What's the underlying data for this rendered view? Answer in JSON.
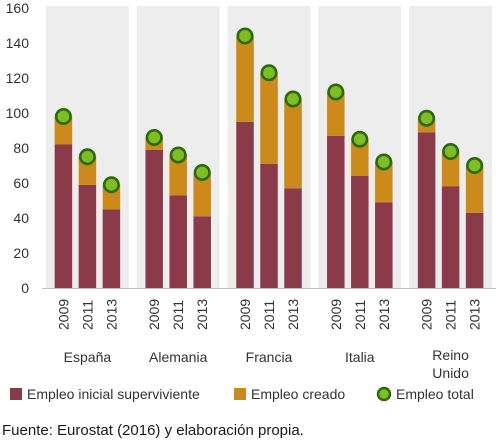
{
  "chart_data": {
    "type": "bar",
    "stacked": true,
    "ylim": [
      0,
      160
    ],
    "yticks": [
      0,
      20,
      40,
      60,
      80,
      100,
      120,
      140,
      160
    ],
    "grid": false,
    "legend_position": "bottom",
    "groups": [
      {
        "label": "España",
        "years": [
          "2009",
          "2011",
          "2013"
        ],
        "surviving": [
          82,
          59,
          45
        ],
        "created": [
          16,
          16,
          14
        ],
        "total": [
          98,
          75,
          59
        ]
      },
      {
        "label": "Alemania",
        "years": [
          "2009",
          "2011",
          "2013"
        ],
        "surviving": [
          79,
          53,
          41
        ],
        "created": [
          7,
          23,
          25
        ],
        "total": [
          86,
          76,
          66
        ]
      },
      {
        "label": "Francia",
        "years": [
          "2009",
          "2011",
          "2013"
        ],
        "surviving": [
          95,
          71,
          57
        ],
        "created": [
          49,
          52,
          51
        ],
        "total": [
          144,
          123,
          108
        ]
      },
      {
        "label": "Italia",
        "years": [
          "2009",
          "2011",
          "2013"
        ],
        "surviving": [
          87,
          64,
          49
        ],
        "created": [
          25,
          21,
          23
        ],
        "total": [
          112,
          85,
          72
        ]
      },
      {
        "label": "Reino\nUnido",
        "years": [
          "2009",
          "2011",
          "2013"
        ],
        "surviving": [
          89,
          58,
          43
        ],
        "created": [
          8,
          20,
          27
        ],
        "total": [
          97,
          78,
          70
        ]
      }
    ],
    "series": [
      {
        "name": "Empleo inicial superviviente",
        "color": "#8b3a4a",
        "kind": "bar"
      },
      {
        "name": "Empleo creado",
        "color": "#cc8a1a",
        "kind": "bar"
      },
      {
        "name": "Empleo total",
        "color": "#7fbe22",
        "edge": "#2b6a0c",
        "kind": "marker"
      }
    ],
    "background_bands": "#ededed"
  },
  "source": "Fuente: Eurostat (2016) y elaboración propia."
}
